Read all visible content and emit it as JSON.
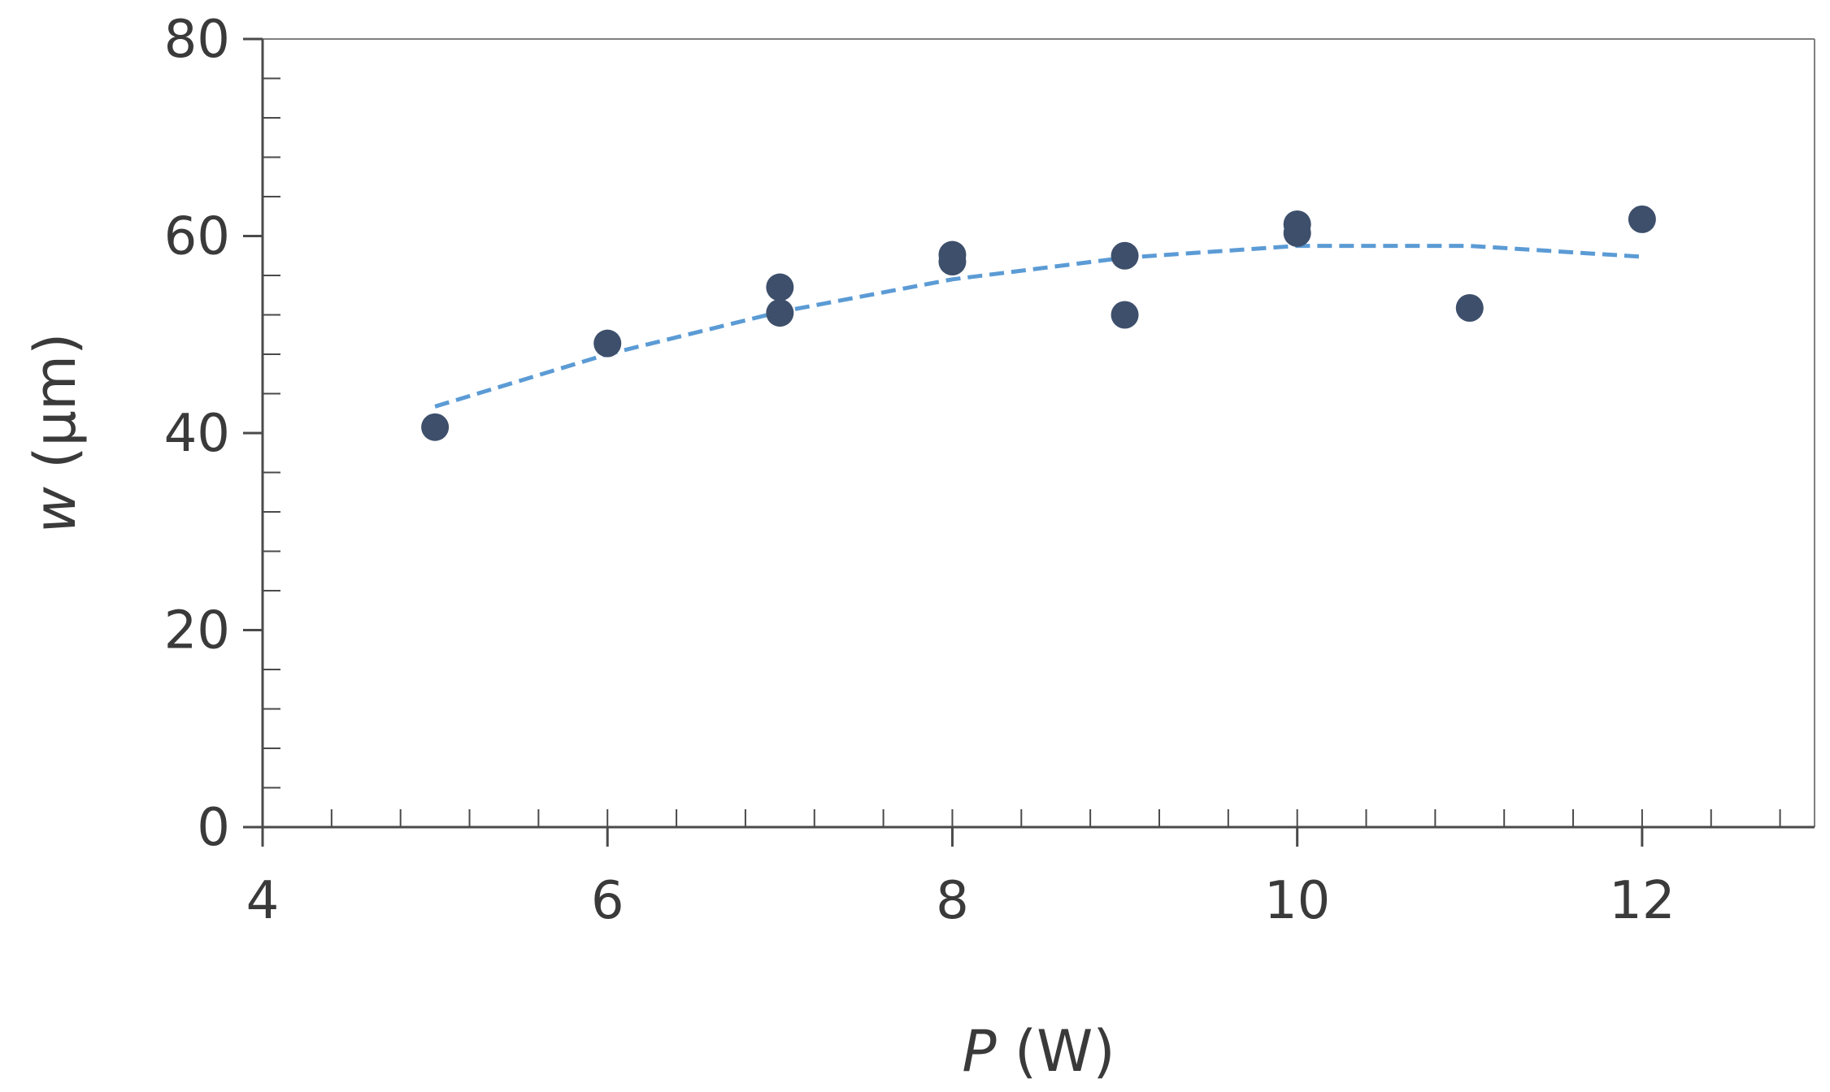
{
  "chart_data": {
    "type": "scatter",
    "xlabel_var": "P",
    "xlabel_unit": " (W)",
    "ylabel_var": "w",
    "ylabel_unit": " (µm)",
    "xlim": [
      4,
      13
    ],
    "ylim": [
      0,
      80
    ],
    "x_ticks": [
      4,
      6,
      8,
      10,
      12
    ],
    "y_ticks": [
      0,
      20,
      40,
      60,
      80
    ],
    "x_minor_step": 0.4,
    "y_minor_step": 4,
    "grid": false,
    "points": [
      {
        "x": 5,
        "y": 40.6
      },
      {
        "x": 6,
        "y": 49.1
      },
      {
        "x": 7,
        "y": 54.8
      },
      {
        "x": 7,
        "y": 52.2
      },
      {
        "x": 8,
        "y": 58.1
      },
      {
        "x": 8,
        "y": 57.4
      },
      {
        "x": 9,
        "y": 58.0
      },
      {
        "x": 9,
        "y": 52.0
      },
      {
        "x": 10,
        "y": 61.2
      },
      {
        "x": 10,
        "y": 60.3
      },
      {
        "x": 11,
        "y": 52.7
      },
      {
        "x": 12,
        "y": 61.7
      }
    ],
    "trendline": {
      "style": "dashed",
      "kind": "polynomial-2",
      "x": [
        5,
        6,
        7,
        8,
        9,
        10,
        11,
        12
      ],
      "y": [
        42.7,
        48.0,
        52.3,
        55.6,
        57.8,
        59.0,
        59.0,
        57.9
      ]
    },
    "colors": {
      "points": "#3d4f6b",
      "trendline": "#5b9bd5",
      "axis": "#4a4a4a",
      "frame": "#7f7f7f"
    }
  }
}
